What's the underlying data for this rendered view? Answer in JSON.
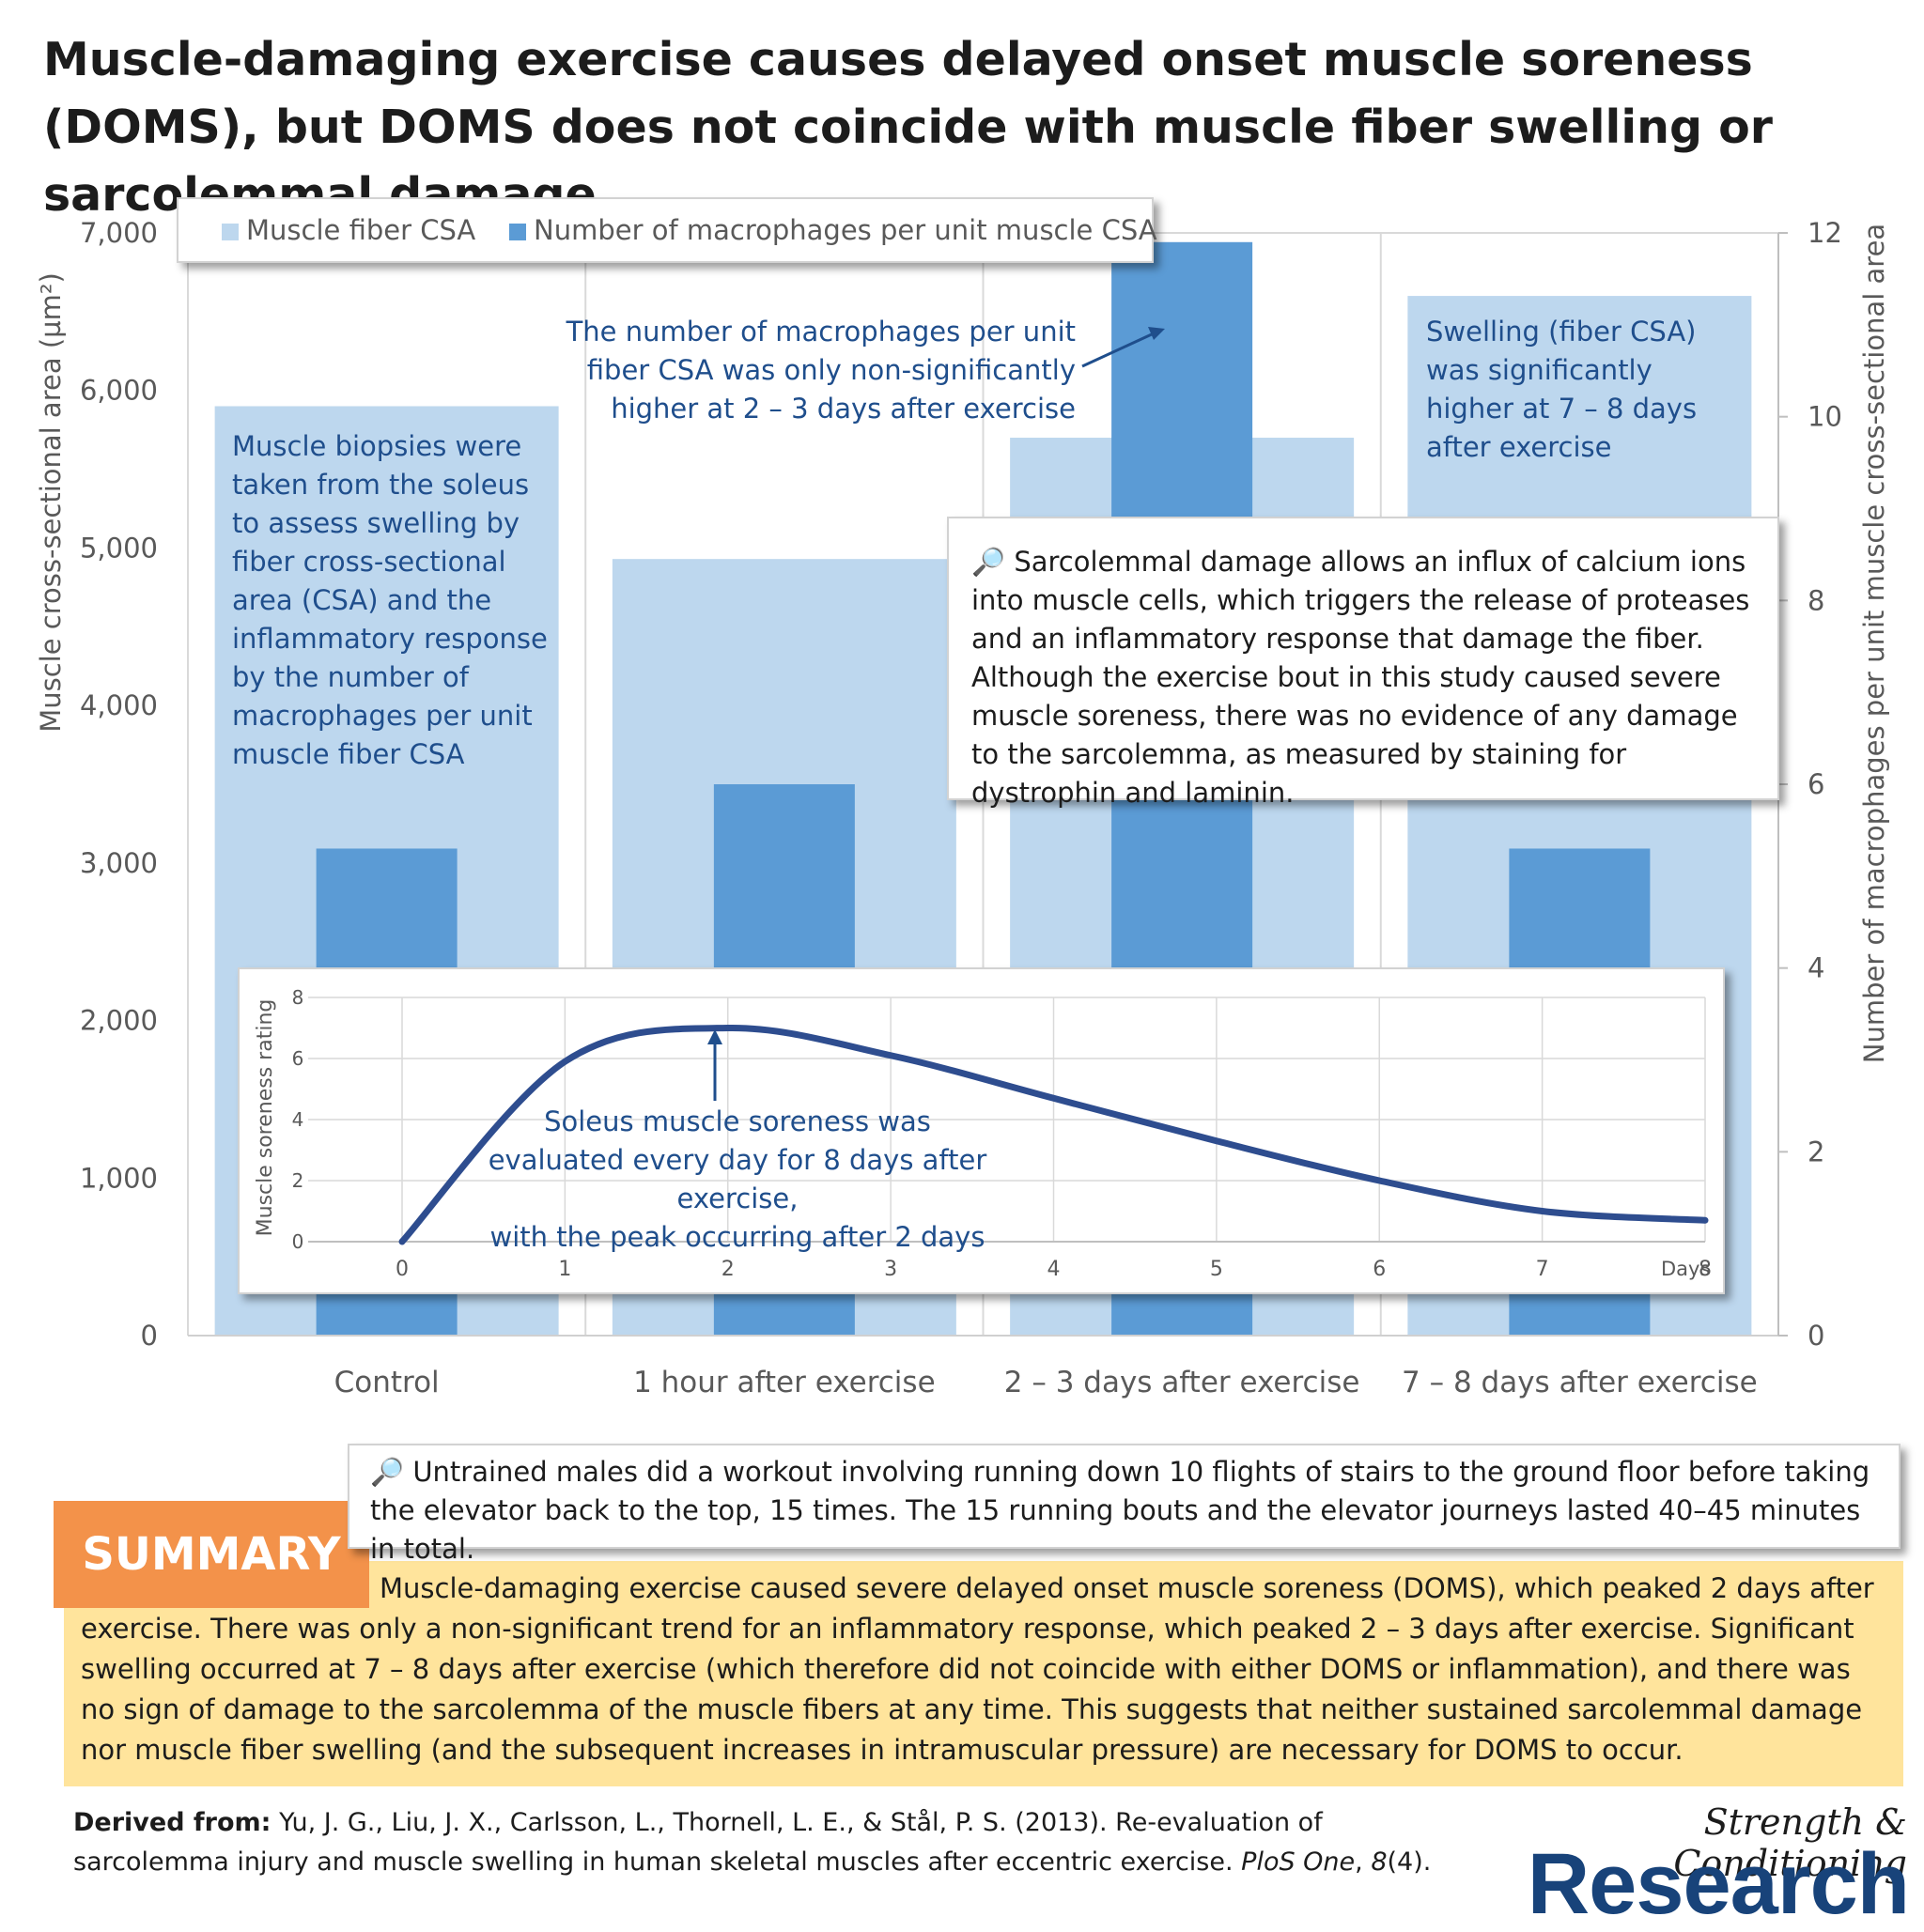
{
  "title": "Muscle-damaging exercise causes delayed onset muscle soreness (DOMS), but DOMS does not coincide with muscle fiber swelling or sarcolemmal damage.",
  "colors": {
    "csa": "#bdd7ee",
    "macrophage": "#5b9bd5",
    "annotation": "#1f4e8c",
    "curve": "#2e4d8f",
    "summary_bg": "#ffe49c",
    "summary_tab": "#f3924a",
    "brand": "#18437a"
  },
  "chart_data": [
    {
      "type": "bar",
      "categories": [
        "Control",
        "1 hour after exercise",
        "2 – 3 days after exercise",
        "7 – 8 days after exercise"
      ],
      "series": [
        {
          "name": "Muscle fiber CSA",
          "axis": "left",
          "values": [
            5900,
            4930,
            5700,
            6600
          ]
        },
        {
          "name": "Number of macrophages per unit muscle CSA",
          "axis": "right",
          "values": [
            5.3,
            6.0,
            11.9,
            5.3
          ]
        }
      ],
      "ylabel": "Muscle cross-sectional area (µm²)",
      "ylim": [
        0,
        7000
      ],
      "yticks": [
        "0",
        "1,000",
        "2,000",
        "3,000",
        "4,000",
        "5,000",
        "6,000",
        "7,000"
      ],
      "y2label": "Number of macrophages per unit muscle cross-sectional area",
      "y2lim": [
        0,
        12
      ],
      "y2ticks": [
        "0",
        "2",
        "4",
        "6",
        "8",
        "10",
        "12"
      ],
      "legend": "top-left",
      "grid": true
    },
    {
      "type": "line",
      "x": [
        0,
        1,
        2,
        3,
        4,
        5,
        6,
        7,
        8
      ],
      "y": [
        0,
        5.9,
        7.0,
        6.1,
        4.7,
        3.3,
        2.0,
        1.0,
        0.7
      ],
      "xlabel": "Days",
      "ylabel": "Muscle soreness rating",
      "xlim": [
        0,
        8
      ],
      "ylim": [
        0,
        8
      ],
      "xticks": [
        "0",
        "1",
        "2",
        "3",
        "4",
        "5",
        "6",
        "7",
        "8"
      ],
      "yticks": [
        "0",
        "2",
        "4",
        "6",
        "8"
      ],
      "grid": true
    }
  ],
  "annotations": {
    "biopsy": [
      "Muscle biopsies were",
      "taken from the soleus",
      "to assess swelling by",
      "fiber cross-sectional",
      "area (CSA) and the",
      "inflammatory response",
      "by the number of",
      "macrophages per unit",
      "muscle fiber CSA"
    ],
    "macrophage": [
      "The number of macrophages per unit",
      "fiber CSA was only non-significantly",
      "higher at 2 – 3 days after exercise"
    ],
    "swelling": [
      "Swelling (fiber CSA)",
      "was significantly",
      "higher at 7 – 8 days",
      "after exercise"
    ],
    "sarcolemma": "🔎 Sarcolemmal damage allows an influx of calcium ions into muscle cells, which triggers the release of proteases and an inflammatory response that damage the fiber. Although the exercise bout in this study caused severe muscle soreness, there was no evidence of any damage to the sarcolemma, as measured by staining for dystrophin and laminin.",
    "soreness": [
      "Soleus muscle soreness was",
      "evaluated every day for 8 days after exercise,",
      "with the peak occurring after 2 days"
    ],
    "workout": "🔎 Untrained males did a workout involving running down 10 flights of stairs to the ground floor before taking the elevator back to the top, 15 times. The 15 running bouts and the elevator journeys lasted 40–45 minutes in total."
  },
  "summary": {
    "label": "SUMMARY",
    "text": "Muscle-damaging exercise caused severe delayed onset muscle soreness (DOMS), which peaked 2 days after exercise. There was only a non-significant trend for an inflammatory response, which peaked 2 – 3 days after exercise. Significant swelling occurred at 7 – 8 days after exercise (which therefore did not coincide with either DOMS or inflammation), and there was no sign of damage to the sarcolemma of the muscle fibers at any time. This suggests that neither sustained sarcolemmal damage nor muscle fiber swelling (and the subsequent increases in intramuscular pressure) are necessary for DOMS to occur."
  },
  "citation": {
    "label": "Derived from:",
    "before": "Yu, J. G., Liu, J. X., Carlsson, L., Thornell, L. E., & Stål, P. S. (2013). Re-evaluation of sarcolemma injury and muscle swelling in human skeletal muscles after eccentric exercise.",
    "journal": "PloS One",
    "volume": "8",
    "issue": "(4)."
  },
  "brand": {
    "script": "Strength & Conditioning",
    "word": "Research"
  }
}
